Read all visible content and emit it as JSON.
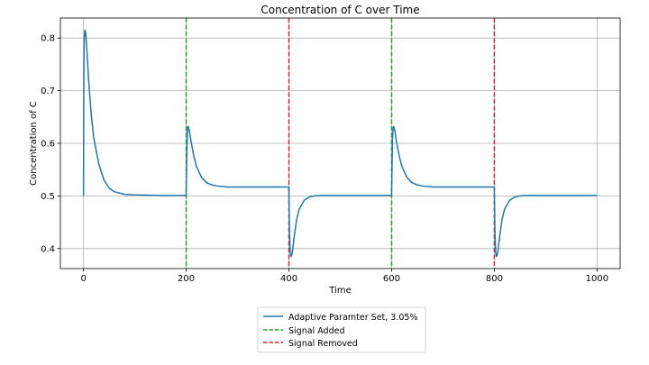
{
  "chart_data": {
    "type": "line",
    "title": "Concentration of C over Time",
    "xlabel": "Time",
    "ylabel": "Concentration of C",
    "xlim": [
      -45,
      1045
    ],
    "ylim": [
      0.362,
      0.838
    ],
    "xticks": [
      0,
      200,
      400,
      600,
      800,
      1000
    ],
    "yticks": [
      0.4,
      0.5,
      0.6,
      0.7,
      0.8
    ],
    "grid": true,
    "legend_position": "below plot, centered",
    "series": [
      {
        "name": "Adaptive Paramter Set, 3.05%",
        "color": "#1f77b4",
        "style": "solid",
        "x": [
          0,
          0.3,
          1,
          2,
          3,
          4,
          5,
          7,
          10,
          15,
          20,
          30,
          40,
          50,
          60,
          80,
          100,
          150,
          199.9,
          200,
          201,
          202,
          203,
          204,
          206,
          210,
          215,
          220,
          230,
          240,
          250,
          260,
          280,
          300,
          350,
          399.9,
          400,
          401,
          402,
          403,
          404,
          405,
          407,
          410,
          415,
          420,
          430,
          440,
          450,
          460,
          480,
          500,
          550,
          599.9,
          600,
          601,
          602,
          603,
          604,
          606,
          610,
          615,
          620,
          630,
          640,
          650,
          660,
          680,
          700,
          750,
          799.9,
          800,
          801,
          802,
          803,
          804,
          805,
          807,
          810,
          815,
          820,
          830,
          840,
          850,
          860,
          880,
          900,
          1000
        ],
        "y": [
          0.5,
          0.65,
          0.78,
          0.81,
          0.815,
          0.812,
          0.8,
          0.77,
          0.72,
          0.655,
          0.61,
          0.56,
          0.53,
          0.515,
          0.508,
          0.503,
          0.502,
          0.501,
          0.501,
          0.51,
          0.57,
          0.615,
          0.631,
          0.632,
          0.625,
          0.6,
          0.575,
          0.556,
          0.535,
          0.525,
          0.521,
          0.519,
          0.517,
          0.517,
          0.517,
          0.517,
          0.51,
          0.44,
          0.405,
          0.39,
          0.385,
          0.386,
          0.395,
          0.42,
          0.455,
          0.475,
          0.492,
          0.498,
          0.5,
          0.501,
          0.501,
          0.501,
          0.501,
          0.501,
          0.51,
          0.57,
          0.615,
          0.631,
          0.632,
          0.625,
          0.6,
          0.575,
          0.556,
          0.535,
          0.525,
          0.521,
          0.519,
          0.517,
          0.517,
          0.517,
          0.517,
          0.51,
          0.44,
          0.405,
          0.39,
          0.385,
          0.386,
          0.395,
          0.42,
          0.455,
          0.475,
          0.492,
          0.498,
          0.5,
          0.501,
          0.501,
          0.501,
          0.501
        ]
      },
      {
        "name": "Signal Added",
        "color": "#2ca02c",
        "style": "dashed",
        "vlines_x": [
          200,
          600
        ]
      },
      {
        "name": "Signal Removed",
        "color": "#d62728",
        "style": "dashed",
        "vlines_x": [
          400,
          800
        ]
      }
    ]
  }
}
